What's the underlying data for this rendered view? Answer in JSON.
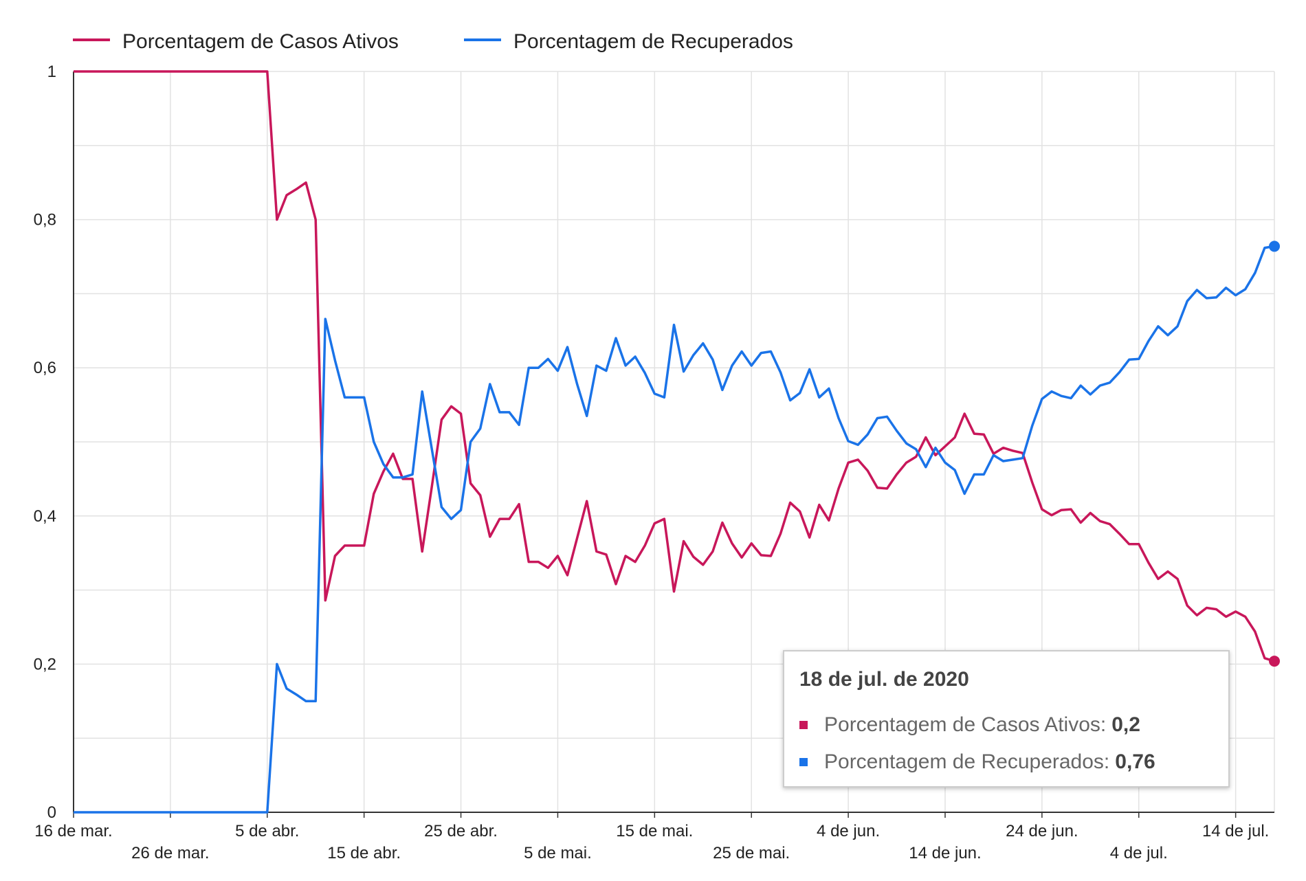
{
  "colors": {
    "active": "#c8175a",
    "recovered": "#1a73e8",
    "grid": "#e2e2e2",
    "axis": "#333333"
  },
  "chart_data": {
    "type": "line",
    "xlabel": "",
    "ylabel": "",
    "ylim": [
      0,
      1
    ],
    "yticks": [
      "0",
      "0,2",
      "0,4",
      "0,6",
      "0,8",
      "1"
    ],
    "xticks": [
      {
        "label": "16 de mar.",
        "date": "2020-03-16"
      },
      {
        "label": "26 de mar.",
        "date": "2020-03-26"
      },
      {
        "label": "5 de abr.",
        "date": "2020-04-05"
      },
      {
        "label": "15 de abr.",
        "date": "2020-04-15"
      },
      {
        "label": "25 de abr.",
        "date": "2020-04-25"
      },
      {
        "label": "5 de mai.",
        "date": "2020-05-05"
      },
      {
        "label": "15 de mai.",
        "date": "2020-05-15"
      },
      {
        "label": "25 de mai.",
        "date": "2020-05-25"
      },
      {
        "label": "4 de jun.",
        "date": "2020-06-04"
      },
      {
        "label": "14 de jun.",
        "date": "2020-06-14"
      },
      {
        "label": "24 de jun.",
        "date": "2020-06-24"
      },
      {
        "label": "4 de jul.",
        "date": "2020-07-04"
      },
      {
        "label": "14 de jul.",
        "date": "2020-07-14"
      }
    ],
    "x_start": "2020-03-16",
    "x_end": "2020-07-18",
    "series": [
      {
        "name": "Porcentagem de Casos Ativos",
        "color": "#c8175a",
        "values": [
          1,
          1,
          1,
          1,
          1,
          1,
          1,
          1,
          1,
          1,
          1,
          1,
          1,
          1,
          1,
          1,
          1,
          1,
          1,
          1,
          1,
          0.8,
          0.833,
          0.841,
          0.85,
          0.8,
          0.286,
          0.346,
          0.36,
          0.36,
          0.36,
          0.43,
          0.46,
          0.484,
          0.45,
          0.45,
          0.352,
          0.44,
          0.53,
          0.548,
          0.538,
          0.444,
          0.428,
          0.372,
          0.396,
          0.396,
          0.416,
          0.338,
          0.338,
          0.33,
          0.346,
          0.32,
          0.37,
          0.42,
          0.352,
          0.348,
          0.308,
          0.346,
          0.338,
          0.36,
          0.39,
          0.396,
          0.298,
          0.366,
          0.345,
          0.334,
          0.352,
          0.391,
          0.363,
          0.344,
          0.363,
          0.347,
          0.346,
          0.376,
          0.418,
          0.406,
          0.371,
          0.415,
          0.394,
          0.437,
          0.472,
          0.476,
          0.461,
          0.438,
          0.437,
          0.456,
          0.472,
          0.48,
          0.506,
          0.482,
          0.494,
          0.506,
          0.538,
          0.511,
          0.51,
          0.484,
          0.492,
          0.488,
          0.485,
          0.445,
          0.409,
          0.401,
          0.408,
          0.409,
          0.391,
          0.404,
          0.393,
          0.389,
          0.376,
          0.362,
          0.362,
          0.337,
          0.315,
          0.325,
          0.315,
          0.279,
          0.266,
          0.276,
          0.274,
          0.264,
          0.271,
          0.264,
          0.244,
          0.208,
          0.204
        ]
      },
      {
        "name": "Porcentagem de Recuperados",
        "color": "#1a73e8",
        "values": [
          0,
          0,
          0,
          0,
          0,
          0,
          0,
          0,
          0,
          0,
          0,
          0,
          0,
          0,
          0,
          0,
          0,
          0,
          0,
          0,
          0,
          0.2,
          0.167,
          0.159,
          0.15,
          0.15,
          0.666,
          0.61,
          0.56,
          0.56,
          0.56,
          0.5,
          0.47,
          0.452,
          0.452,
          0.456,
          0.568,
          0.49,
          0.412,
          0.396,
          0.408,
          0.5,
          0.518,
          0.578,
          0.54,
          0.54,
          0.523,
          0.6,
          0.6,
          0.612,
          0.596,
          0.628,
          0.578,
          0.535,
          0.603,
          0.596,
          0.64,
          0.603,
          0.615,
          0.593,
          0.565,
          0.56,
          0.658,
          0.595,
          0.617,
          0.633,
          0.611,
          0.57,
          0.603,
          0.622,
          0.603,
          0.62,
          0.622,
          0.594,
          0.556,
          0.566,
          0.598,
          0.56,
          0.572,
          0.532,
          0.501,
          0.496,
          0.51,
          0.532,
          0.534,
          0.515,
          0.498,
          0.49,
          0.466,
          0.492,
          0.472,
          0.462,
          0.43,
          0.456,
          0.456,
          0.482,
          0.474,
          0.476,
          0.478,
          0.522,
          0.558,
          0.568,
          0.562,
          0.559,
          0.576,
          0.564,
          0.576,
          0.58,
          0.594,
          0.611,
          0.612,
          0.636,
          0.656,
          0.644,
          0.656,
          0.69,
          0.705,
          0.694,
          0.695,
          0.708,
          0.698,
          0.706,
          0.728,
          0.762,
          0.764
        ]
      }
    ],
    "legend_position": "top-left",
    "grid": true
  },
  "tooltip": {
    "title": "18 de jul. de 2020",
    "active_label": "Porcentagem de Casos Ativos:",
    "active_value": "0,2",
    "recovered_label": "Porcentagem de Recuperados:",
    "recovered_value": "0,76"
  }
}
